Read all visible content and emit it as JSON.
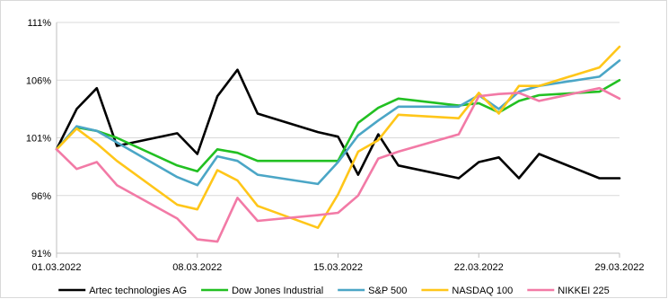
{
  "chart_data": {
    "type": "line",
    "title": "",
    "xlabel": "",
    "ylabel": "",
    "x_tick_labels": [
      "01.03.2022",
      "08.03.2022",
      "15.03.2022",
      "22.03.2022",
      "29.03.2022"
    ],
    "y_tick_labels": [
      "91%",
      "96%",
      "101%",
      "106%",
      "111%"
    ],
    "xlim": [
      "2022-03-01",
      "2022-03-29"
    ],
    "ylim": [
      91,
      111
    ],
    "y_unit": "%",
    "grid": "horizontal",
    "legend_position": "bottom",
    "series": [
      {
        "name": "Artec technologies AG",
        "color": "#000000",
        "points": [
          [
            "2022-03-01",
            100.0
          ],
          [
            "2022-03-02",
            103.5
          ],
          [
            "2022-03-03",
            105.3
          ],
          [
            "2022-03-04",
            100.3
          ],
          [
            "2022-03-07",
            101.4
          ],
          [
            "2022-03-08",
            99.6
          ],
          [
            "2022-03-09",
            104.6
          ],
          [
            "2022-03-10",
            106.9
          ],
          [
            "2022-03-11",
            103.1
          ],
          [
            "2022-03-14",
            101.5
          ],
          [
            "2022-03-15",
            101.1
          ],
          [
            "2022-03-16",
            97.8
          ],
          [
            "2022-03-17",
            101.3
          ],
          [
            "2022-03-18",
            98.6
          ],
          [
            "2022-03-21",
            97.5
          ],
          [
            "2022-03-22",
            98.9
          ],
          [
            "2022-03-23",
            99.3
          ],
          [
            "2022-03-24",
            97.5
          ],
          [
            "2022-03-25",
            99.6
          ],
          [
            "2022-03-28",
            97.5
          ],
          [
            "2022-03-29",
            97.5
          ]
        ]
      },
      {
        "name": "Dow Jones Industrial",
        "color": "#22c022",
        "points": [
          [
            "2022-03-01",
            100.0
          ],
          [
            "2022-03-02",
            101.9
          ],
          [
            "2022-03-03",
            101.6
          ],
          [
            "2022-03-04",
            101.0
          ],
          [
            "2022-03-07",
            98.6
          ],
          [
            "2022-03-08",
            98.1
          ],
          [
            "2022-03-09",
            100.0
          ],
          [
            "2022-03-10",
            99.7
          ],
          [
            "2022-03-11",
            99.0
          ],
          [
            "2022-03-14",
            99.0
          ],
          [
            "2022-03-15",
            99.0
          ],
          [
            "2022-03-16",
            102.3
          ],
          [
            "2022-03-17",
            103.6
          ],
          [
            "2022-03-18",
            104.4
          ],
          [
            "2022-03-21",
            103.8
          ],
          [
            "2022-03-22",
            104.0
          ],
          [
            "2022-03-23",
            103.2
          ],
          [
            "2022-03-24",
            104.2
          ],
          [
            "2022-03-25",
            104.7
          ],
          [
            "2022-03-28",
            105.0
          ],
          [
            "2022-03-29",
            106.0
          ]
        ]
      },
      {
        "name": "S&P 500",
        "color": "#4ba6c6",
        "points": [
          [
            "2022-03-01",
            100.0
          ],
          [
            "2022-03-02",
            102.0
          ],
          [
            "2022-03-03",
            101.6
          ],
          [
            "2022-03-04",
            100.6
          ],
          [
            "2022-03-07",
            97.6
          ],
          [
            "2022-03-08",
            96.9
          ],
          [
            "2022-03-09",
            99.4
          ],
          [
            "2022-03-10",
            99.0
          ],
          [
            "2022-03-11",
            97.8
          ],
          [
            "2022-03-14",
            97.0
          ],
          [
            "2022-03-15",
            98.9
          ],
          [
            "2022-03-16",
            101.2
          ],
          [
            "2022-03-17",
            102.5
          ],
          [
            "2022-03-18",
            103.7
          ],
          [
            "2022-03-21",
            103.7
          ],
          [
            "2022-03-22",
            104.7
          ],
          [
            "2022-03-23",
            103.5
          ],
          [
            "2022-03-24",
            105.0
          ],
          [
            "2022-03-25",
            105.5
          ],
          [
            "2022-03-28",
            106.3
          ],
          [
            "2022-03-29",
            107.7
          ]
        ]
      },
      {
        "name": "NASDAQ 100",
        "color": "#ffc619",
        "points": [
          [
            "2022-03-01",
            100.0
          ],
          [
            "2022-03-02",
            101.8
          ],
          [
            "2022-03-03",
            100.5
          ],
          [
            "2022-03-04",
            99.0
          ],
          [
            "2022-03-07",
            95.2
          ],
          [
            "2022-03-08",
            94.8
          ],
          [
            "2022-03-09",
            98.2
          ],
          [
            "2022-03-10",
            97.3
          ],
          [
            "2022-03-11",
            95.1
          ],
          [
            "2022-03-14",
            93.2
          ],
          [
            "2022-03-15",
            96.1
          ],
          [
            "2022-03-16",
            99.8
          ],
          [
            "2022-03-17",
            100.8
          ],
          [
            "2022-03-18",
            103.0
          ],
          [
            "2022-03-21",
            102.7
          ],
          [
            "2022-03-22",
            104.9
          ],
          [
            "2022-03-23",
            103.1
          ],
          [
            "2022-03-24",
            105.5
          ],
          [
            "2022-03-25",
            105.5
          ],
          [
            "2022-03-28",
            107.1
          ],
          [
            "2022-03-29",
            108.9
          ]
        ]
      },
      {
        "name": "NIKKEI 225",
        "color": "#f27aa6",
        "points": [
          [
            "2022-03-01",
            100.0
          ],
          [
            "2022-03-02",
            98.3
          ],
          [
            "2022-03-03",
            98.9
          ],
          [
            "2022-03-04",
            96.9
          ],
          [
            "2022-03-07",
            94.0
          ],
          [
            "2022-03-08",
            92.2
          ],
          [
            "2022-03-09",
            92.0
          ],
          [
            "2022-03-10",
            95.8
          ],
          [
            "2022-03-11",
            93.8
          ],
          [
            "2022-03-14",
            94.3
          ],
          [
            "2022-03-15",
            94.5
          ],
          [
            "2022-03-16",
            96.0
          ],
          [
            "2022-03-17",
            99.2
          ],
          [
            "2022-03-18",
            99.8
          ],
          [
            "2022-03-21",
            101.3
          ],
          [
            "2022-03-22",
            104.6
          ],
          [
            "2022-03-23",
            104.8
          ],
          [
            "2022-03-24",
            104.9
          ],
          [
            "2022-03-25",
            104.2
          ],
          [
            "2022-03-28",
            105.3
          ],
          [
            "2022-03-29",
            104.4
          ]
        ]
      }
    ]
  }
}
